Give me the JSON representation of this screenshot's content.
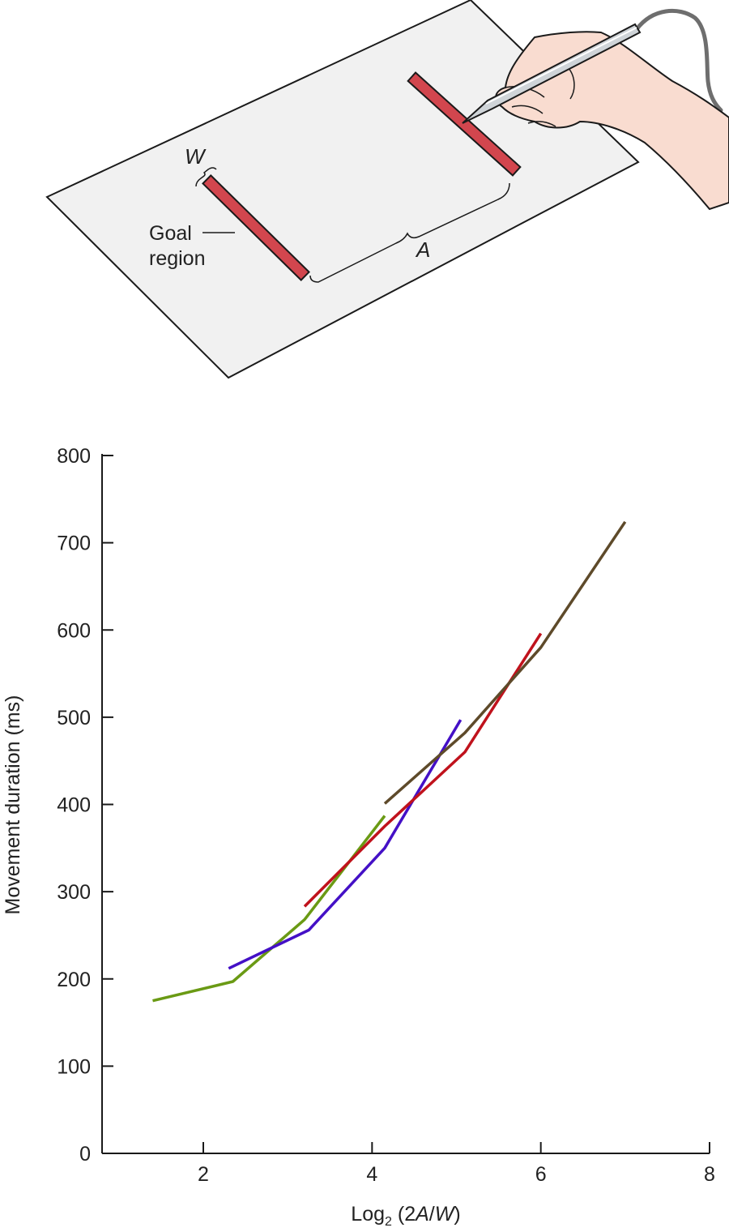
{
  "illustration": {
    "width_label": "W",
    "amplitude_label": "A",
    "goal_label_line1": "Goal",
    "goal_label_line2": "region",
    "sheet_color": "#f1f1f1",
    "target_color": "#d2464e",
    "skin_color": "#f9dcd0"
  },
  "chart_data": {
    "type": "line",
    "xlabel": "Log₂ (2A/W)",
    "xlabel_parts": {
      "pre": "Log",
      "sub": "2",
      "paren_open": " (2",
      "a": "A",
      "slash": "/",
      "w": "W",
      "paren_close": ")"
    },
    "ylabel": "Movement duration (ms)",
    "xlim": [
      0.8,
      8
    ],
    "ylim": [
      0,
      800
    ],
    "xticks": [
      "2",
      "4",
      "6",
      "8"
    ],
    "xtick_values": [
      2,
      4,
      6,
      8
    ],
    "yticks": [
      "0",
      "100",
      "200",
      "300",
      "400",
      "500",
      "600",
      "700",
      "800"
    ],
    "ytick_values": [
      0,
      100,
      200,
      300,
      400,
      500,
      600,
      700,
      800
    ],
    "grid": false,
    "legend": "none",
    "series": [
      {
        "color": "#6a9a14",
        "points": [
          [
            1.4,
            175
          ],
          [
            2.35,
            197
          ],
          [
            3.2,
            268
          ],
          [
            4.15,
            387
          ]
        ]
      },
      {
        "color": "#4410c6",
        "points": [
          [
            2.3,
            212
          ],
          [
            3.25,
            256
          ],
          [
            4.15,
            350
          ],
          [
            5.05,
            497
          ]
        ]
      },
      {
        "color": "#c0121c",
        "points": [
          [
            3.2,
            283
          ],
          [
            4.15,
            375
          ],
          [
            5.1,
            460
          ],
          [
            6.0,
            596
          ]
        ]
      },
      {
        "color": "#5e4a2a",
        "points": [
          [
            4.15,
            401
          ],
          [
            5.1,
            482
          ],
          [
            6.0,
            580
          ],
          [
            7.0,
            724
          ]
        ]
      }
    ]
  }
}
